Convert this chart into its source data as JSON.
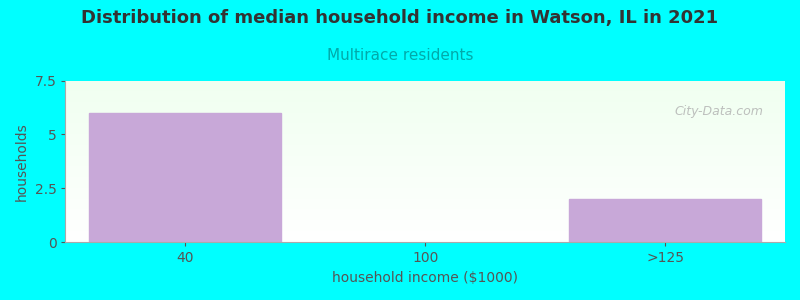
{
  "title": "Distribution of median household income in Watson, IL in 2021",
  "subtitle": "Multirace residents",
  "xlabel": "household income ($1000)",
  "ylabel": "households",
  "categories": [
    "40",
    "100",
    ">125"
  ],
  "values": [
    6,
    0,
    2
  ],
  "bar_color": "#c8a8d8",
  "ylim": [
    0,
    7.5
  ],
  "yticks": [
    0,
    2.5,
    5,
    7.5
  ],
  "figure_bg": "#00ffff",
  "plot_bg_top": "#f0fff0",
  "plot_bg_bottom": "#ffffff",
  "title_color": "#333333",
  "subtitle_color": "#00aaaa",
  "axis_label_color": "#555555",
  "tick_color": "#555555",
  "watermark": "City-Data.com",
  "watermark_color": "#b0b0b0",
  "title_fontsize": 13,
  "subtitle_fontsize": 11,
  "label_fontsize": 10,
  "tick_fontsize": 10
}
